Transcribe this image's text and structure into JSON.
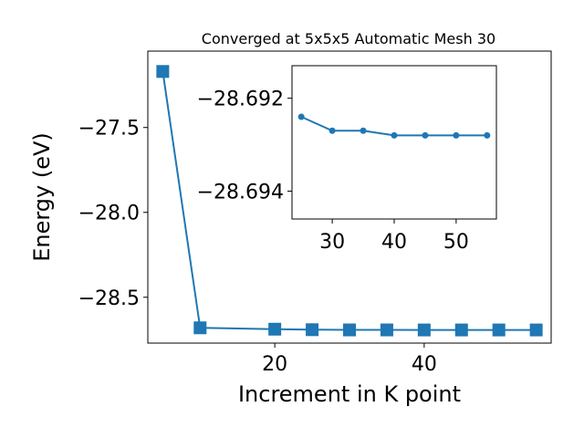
{
  "chart_data": [
    {
      "type": "line",
      "title": "Converged at 5x5x5 Automatic Mesh 30",
      "xlabel": "Increment in K point",
      "ylabel": "Energy (eV)",
      "xlim": [
        3,
        57
      ],
      "ylim": [
        -28.77,
        -27.05
      ],
      "xticks": [
        20,
        40
      ],
      "yticks": [
        -27.5,
        -28.0,
        -28.5
      ],
      "ytick_labels": [
        "−27.5",
        "−28.0",
        "−28.5"
      ],
      "marker": "square",
      "color": "#1f77b4",
      "grid": false,
      "series": [
        {
          "x": [
            5,
            10,
            20,
            25,
            30,
            35,
            40,
            45,
            50,
            55
          ],
          "y": [
            -27.17,
            -28.68,
            -28.688,
            -28.691,
            -28.6923,
            -28.6923,
            -28.6925,
            -28.6925,
            -28.6925,
            -28.6925
          ]
        }
      ]
    },
    {
      "type": "line",
      "title": "",
      "xlim": [
        23.5,
        56.5
      ],
      "ylim": [
        -28.6946,
        -28.6913
      ],
      "xticks": [
        30,
        40,
        50
      ],
      "yticks": [
        -28.694,
        -28.692
      ],
      "ytick_labels": [
        "−28.694",
        "−28.692"
      ],
      "marker": "circle",
      "color": "#1f77b4",
      "grid": false,
      "series": [
        {
          "x": [
            25,
            30,
            35,
            40,
            45,
            50,
            55
          ],
          "y": [
            -28.6924,
            -28.6927,
            -28.6927,
            -28.6928,
            -28.6928,
            -28.6928,
            -28.6928
          ]
        }
      ]
    }
  ]
}
